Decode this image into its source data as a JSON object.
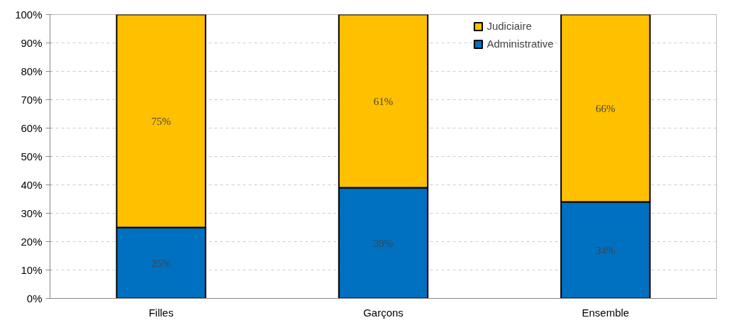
{
  "chart_data": {
    "type": "bar",
    "stacked": true,
    "categories": [
      "Filles",
      "Garçons",
      "Ensemble"
    ],
    "series": [
      {
        "name": "Administrative",
        "color": "#0070c0",
        "values": [
          25,
          39,
          34
        ],
        "value_labels": [
          "25%",
          "39%",
          "34%"
        ]
      },
      {
        "name": "Judiciaire",
        "color": "#ffc000",
        "values": [
          75,
          61,
          66
        ],
        "value_labels": [
          "75%",
          "61%",
          "66%"
        ]
      }
    ],
    "ylim": [
      0,
      100
    ],
    "yticks": [
      {
        "value": 0,
        "label": "0%"
      },
      {
        "value": 10,
        "label": "10%"
      },
      {
        "value": 20,
        "label": "20%"
      },
      {
        "value": 30,
        "label": "30%"
      },
      {
        "value": 40,
        "label": "40%"
      },
      {
        "value": 50,
        "label": "50%"
      },
      {
        "value": 60,
        "label": "60%"
      },
      {
        "value": 70,
        "label": "70%"
      },
      {
        "value": 80,
        "label": "80%"
      },
      {
        "value": 90,
        "label": "90%"
      },
      {
        "value": 100,
        "label": "100%"
      }
    ],
    "grid": "y",
    "legend": "top right"
  }
}
